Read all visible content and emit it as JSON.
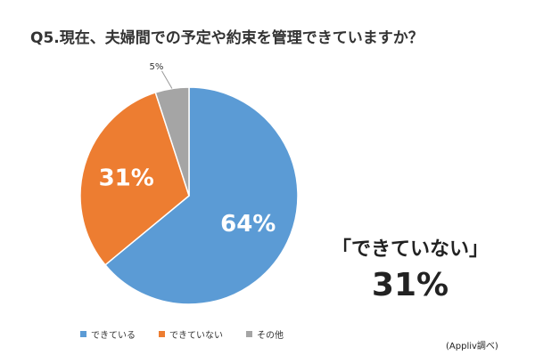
{
  "title": "Q5.現在、夫婦間での予定や約束を管理できていますか？",
  "chart_data": {
    "type": "pie",
    "categories": [
      "できている",
      "できていない",
      "その他"
    ],
    "values": [
      64,
      31,
      5
    ],
    "data_labels": [
      "64%",
      "31%",
      "5%"
    ],
    "colors": [
      "#5b9bd5",
      "#ed7d31",
      "#a5a5a5"
    ],
    "legend_position": "bottom"
  },
  "callout": {
    "label": "「できていない」",
    "value": "31%"
  },
  "source": "(Appliv調べ)"
}
